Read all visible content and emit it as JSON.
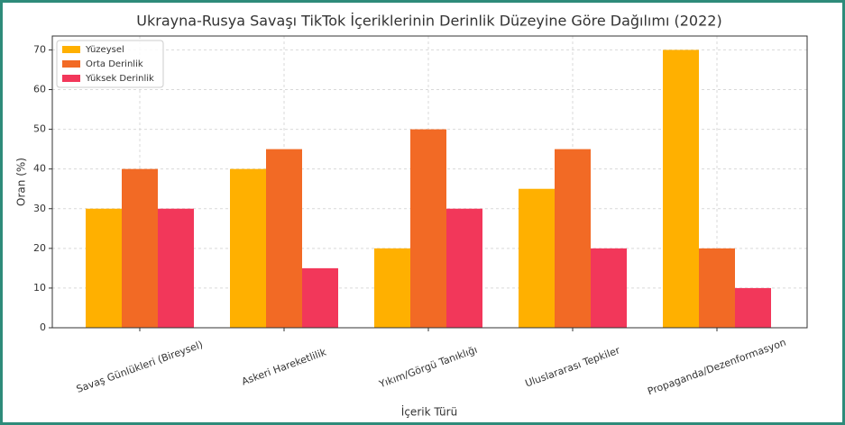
{
  "chart_data": {
    "type": "bar",
    "title": "Ukrayna-Rusya Savaşı TikTok İçeriklerinin Derinlik Düzeyine Göre Dağılımı (2022)",
    "x_label": "İçerik Türü",
    "y_label": "Oran (%)",
    "categories": [
      "Savaş Günlükleri (Bireysel)",
      "Askeri Hareketlilik",
      "Yıkım/Görgü Tanıklığı",
      "Uluslararası Tepkiler",
      "Propaganda/Dezenformasyon"
    ],
    "series": [
      {
        "name": "Yüzeysel",
        "color": "#FFB000",
        "values": [
          30,
          40,
          20,
          35,
          70
        ]
      },
      {
        "name": "Orta Derinlik",
        "color": "#F26A25",
        "values": [
          40,
          45,
          50,
          45,
          20
        ]
      },
      {
        "name": "Yüksek Derinlik",
        "color": "#F2375A",
        "values": [
          30,
          15,
          30,
          20,
          10
        ]
      }
    ],
    "ylim": [
      0,
      73.5
    ],
    "yticks": [
      0,
      10,
      20,
      30,
      40,
      50,
      60,
      70
    ],
    "grid": true,
    "legend": "upper left"
  }
}
